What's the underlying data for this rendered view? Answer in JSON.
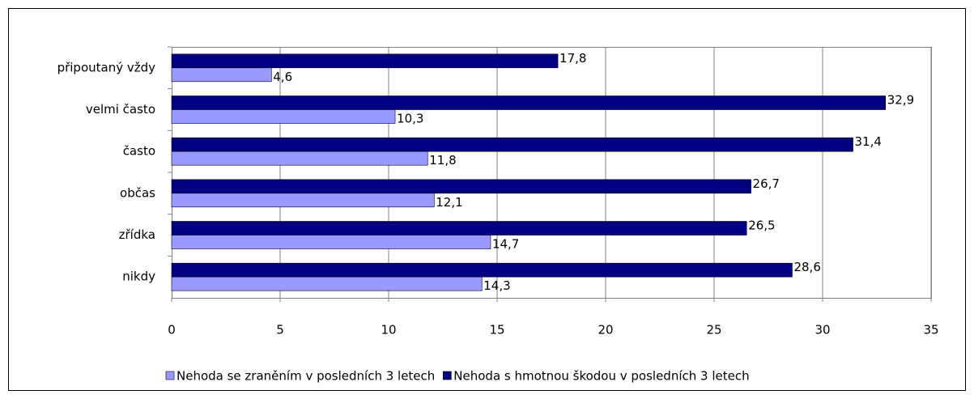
{
  "chart_data": {
    "type": "hbar",
    "categories": [
      "připoutaný vždy",
      "velmi často",
      "často",
      "občas",
      "zřídka",
      "nikdy"
    ],
    "series": [
      {
        "name": "Nehoda se zraněním v posledních 3 letech",
        "color": "#9999ff",
        "values": [
          4.6,
          10.3,
          11.8,
          12.1,
          14.7,
          14.3
        ],
        "value_labels": [
          "4,6",
          "10,3",
          "11,8",
          "12,1",
          "14,7",
          "14,3"
        ]
      },
      {
        "name": "Nehoda s hmotnou škodou v posledních 3 letech",
        "color": "#000080",
        "values": [
          17.8,
          32.9,
          31.4,
          26.7,
          26.5,
          28.6
        ],
        "value_labels": [
          "17,8",
          "32,9",
          "31,4",
          "26,7",
          "26,5",
          "28,6"
        ]
      }
    ],
    "xlim": [
      0,
      35
    ],
    "xticks": [
      0,
      5,
      10,
      15,
      20,
      25,
      30,
      35
    ],
    "grid": true
  }
}
